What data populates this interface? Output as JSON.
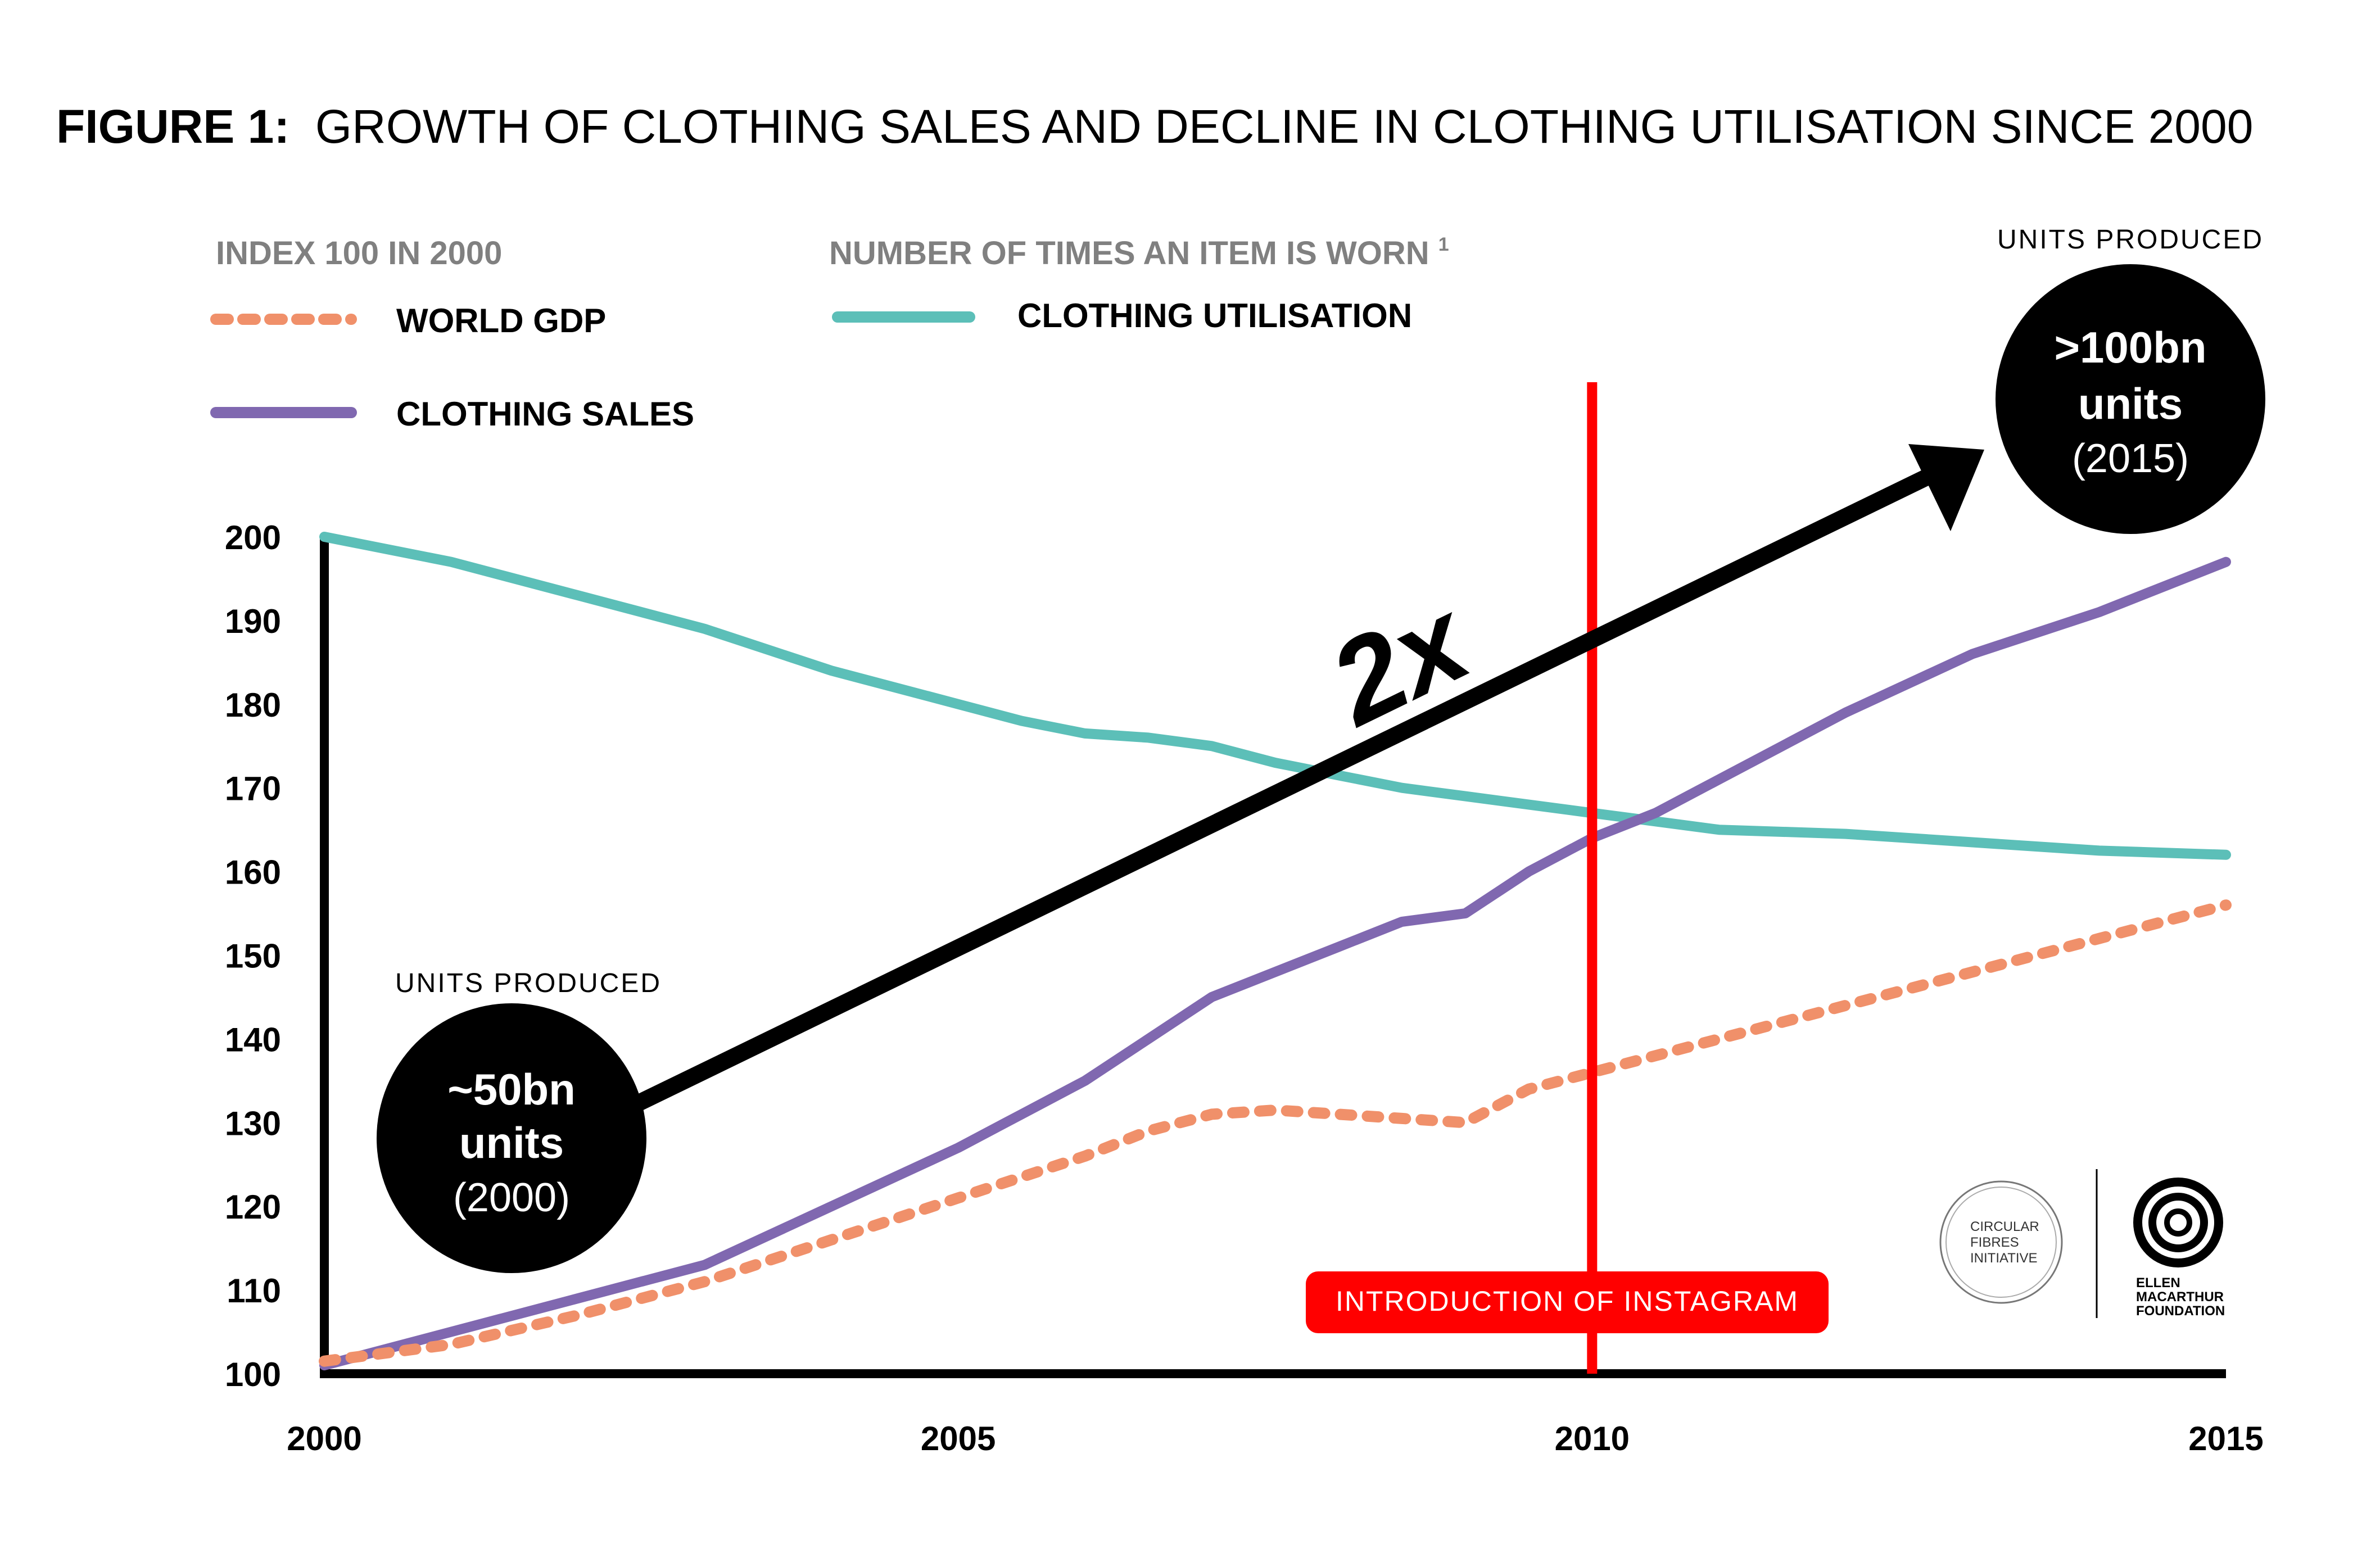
{
  "title": {
    "prefix": "FIGURE 1:",
    "text": "GROWTH OF CLOTHING SALES AND DECLINE IN CLOTHING UTILISATION SINCE 2000"
  },
  "legend": {
    "left_header": "INDEX 100 IN 2000",
    "right_header": "NUMBER OF TIMES AN ITEM IS WORN",
    "right_header_sup": "1",
    "entries": {
      "gdp": "WORLD GDP",
      "sales": "CLOTHING SALES",
      "utilisation": "CLOTHING UTILISATION"
    }
  },
  "callouts": {
    "start": {
      "caption": "UNITS PRODUCED",
      "line1": "~50bn",
      "line2": "units",
      "line3": "(2000)"
    },
    "end": {
      "caption": "UNITS PRODUCED",
      "line1": ">100bn",
      "line2": "units",
      "line3": "(2015)"
    },
    "arrow_label": "2x"
  },
  "event": {
    "label": "INTRODUCTION OF INSTAGRAM",
    "x": 2010
  },
  "logos": {
    "cfi": [
      "CIRCULAR",
      "FIBRES",
      "INITIATIVE"
    ],
    "emf": [
      "ELLEN",
      "MACARTHUR",
      "FOUNDATION"
    ]
  },
  "colors": {
    "gdp": "#F0906A",
    "sales": "#8068B0",
    "utilisation": "#5CBFB8",
    "event": "#FF0000",
    "axis": "#000000",
    "header_gray": "#808080"
  },
  "chart_data": {
    "type": "line",
    "xlim": [
      2000,
      2015
    ],
    "ylim": [
      100,
      200
    ],
    "x_ticks": [
      2000,
      2005,
      2010,
      2015
    ],
    "y_ticks": [
      100,
      110,
      120,
      130,
      140,
      150,
      160,
      170,
      180,
      190,
      200
    ],
    "grid": false,
    "legend_position": "top-left",
    "series": [
      {
        "name": "CLOTHING UTILISATION",
        "key": "utilisation",
        "style": "solid",
        "x": [
          2000,
          2001,
          2002,
          2003,
          2004,
          2005,
          2005.5,
          2006,
          2006.5,
          2007,
          2007.5,
          2008,
          2008.5,
          2009,
          2010,
          2011,
          2012,
          2013,
          2014,
          2015
        ],
        "y": [
          200,
          197,
          193,
          189,
          184,
          180,
          178,
          176.5,
          176,
          175,
          173,
          171.5,
          170,
          169,
          167,
          165,
          164.5,
          163.5,
          162.5,
          162
        ]
      },
      {
        "name": "CLOTHING SALES",
        "key": "sales",
        "style": "solid",
        "x": [
          2000,
          2001,
          2002,
          2003,
          2004,
          2005,
          2005.5,
          2006,
          2006.5,
          2007,
          2007.5,
          2008,
          2008.5,
          2009,
          2009.5,
          2010,
          2010.5,
          2011,
          2011.5,
          2012,
          2013,
          2014,
          2015
        ],
        "y": [
          101,
          105,
          109,
          113,
          120,
          127,
          131,
          135,
          140,
          145,
          148,
          151,
          154,
          155,
          160,
          164,
          167,
          171,
          175,
          179,
          186,
          191,
          197
        ]
      },
      {
        "name": "WORLD GDP",
        "key": "gdp",
        "style": "dotted",
        "x": [
          2000,
          2001,
          2002,
          2003,
          2004,
          2005,
          2006,
          2006.5,
          2007,
          2007.5,
          2008,
          2008.5,
          2009,
          2009.5,
          2010,
          2011,
          2012,
          2013,
          2014,
          2015
        ],
        "y": [
          101.5,
          103.5,
          107,
          111,
          116,
          121,
          126,
          129,
          131,
          131.5,
          131,
          130.5,
          130,
          134,
          136,
          140,
          144,
          148,
          152,
          156
        ]
      }
    ]
  }
}
